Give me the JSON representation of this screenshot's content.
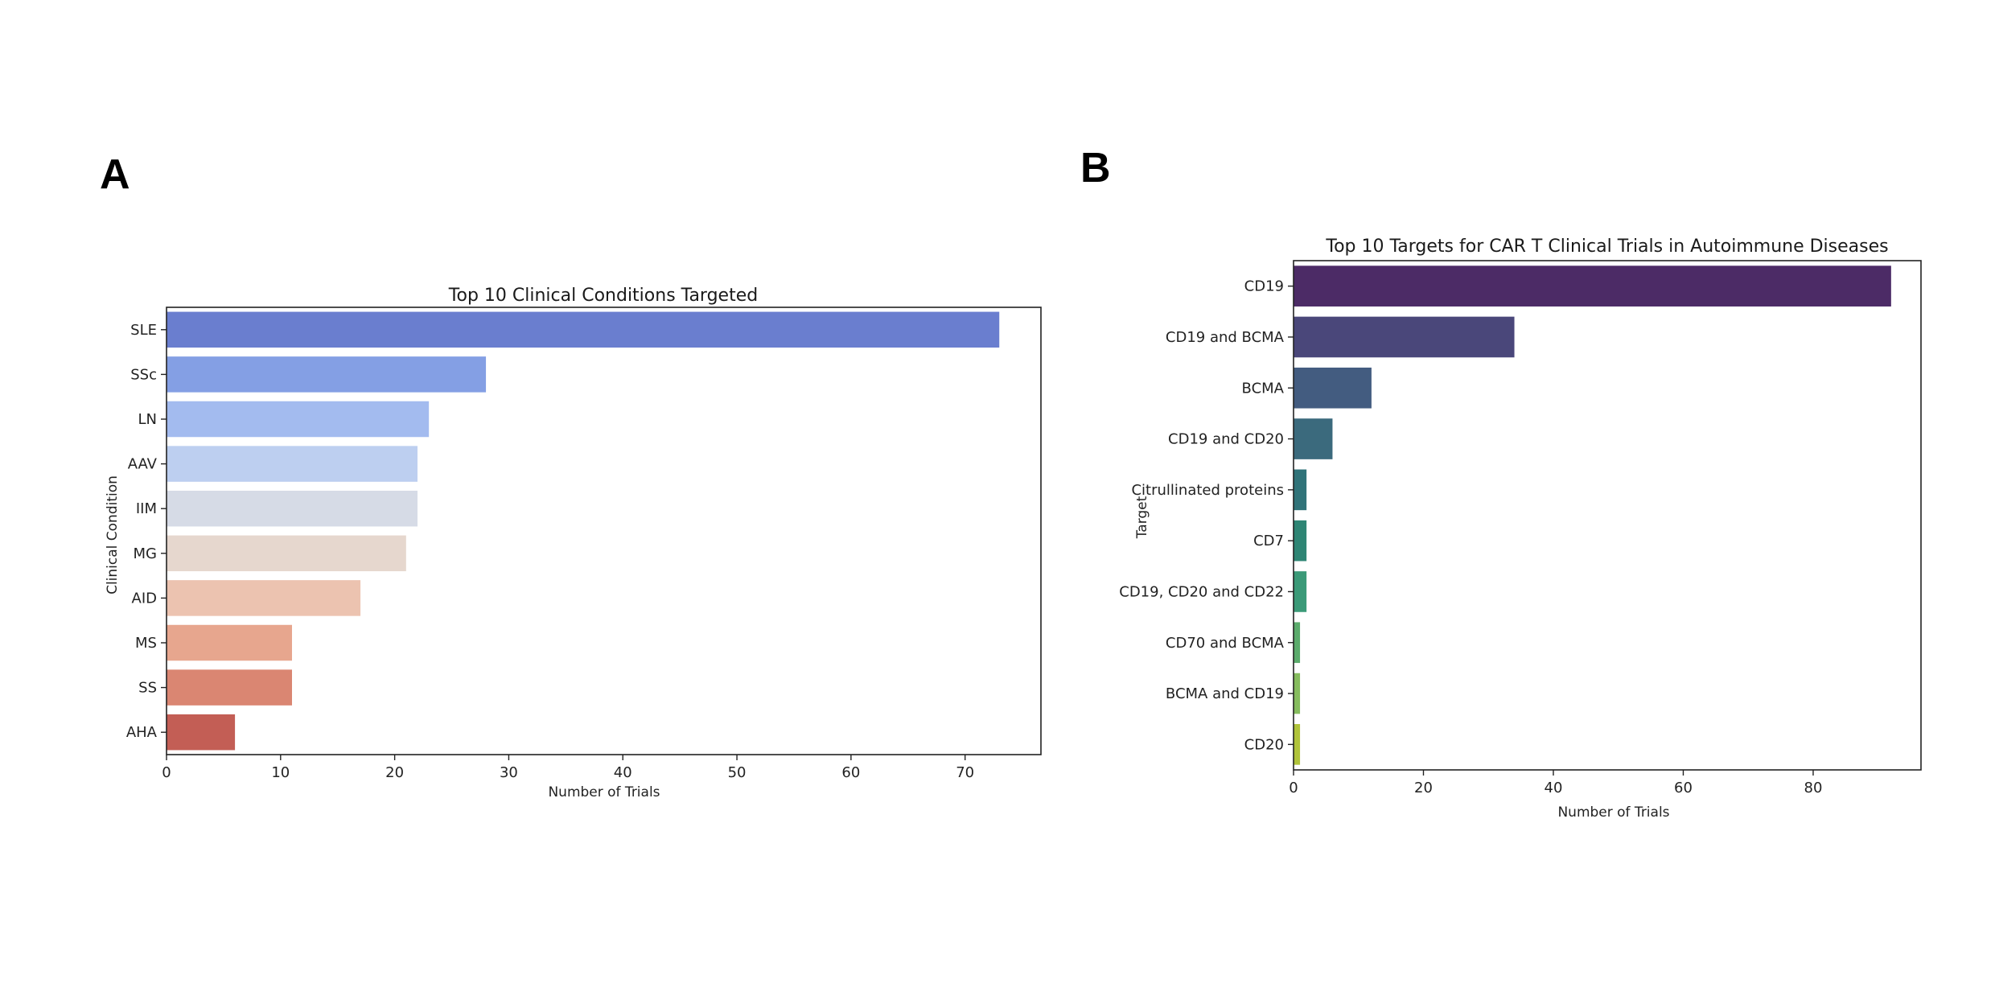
{
  "figure": {
    "panels": [
      {
        "letter": "A"
      },
      {
        "letter": "B"
      }
    ]
  },
  "chart_data": [
    {
      "type": "bar",
      "orientation": "horizontal",
      "title": "Top 10 Clinical Conditions Targeted",
      "xlabel": "Number of Trials",
      "ylabel": "Clinical Condition",
      "categories": [
        "SLE",
        "SSc",
        "LN",
        "AAV",
        "IIM",
        "MG",
        "AID",
        "MS",
        "SS",
        "AHA"
      ],
      "values": [
        73,
        28,
        23,
        22,
        22,
        21,
        17,
        11,
        11,
        6
      ],
      "colors": [
        "#6a7ecf",
        "#849fe4",
        "#a3bbef",
        "#bdcff0",
        "#d6dbe6",
        "#e6d7ce",
        "#ecc3b0",
        "#e7a68e",
        "#da8672",
        "#c35e55"
      ],
      "palette": "coolwarm",
      "xlim": [
        0,
        76.65
      ],
      "xticks": [
        0,
        10,
        20,
        30,
        40,
        50,
        60,
        70
      ],
      "grid": false,
      "legend": "none"
    },
    {
      "type": "bar",
      "orientation": "horizontal",
      "title": "Top 10 Targets for CAR T Clinical Trials in Autoimmune Diseases",
      "xlabel": "Number of Trials",
      "ylabel": "Target",
      "categories": [
        "CD19",
        "CD19 and BCMA",
        "BCMA",
        "CD19 and CD20",
        "Citrullinated proteins",
        "CD7",
        "CD19, CD20 and CD22",
        "CD70 and BCMA",
        "BCMA and CD19",
        "CD20"
      ],
      "values": [
        92,
        34,
        12,
        6,
        2,
        2,
        2,
        1,
        1,
        1
      ],
      "colors": [
        "#4c2b66",
        "#4a477a",
        "#435c80",
        "#3b6a7d",
        "#307379",
        "#2e8574",
        "#3b9a78",
        "#5bab6c",
        "#86bc5e",
        "#b0c33a"
      ],
      "palette": "viridis",
      "xlim": [
        0,
        96.6
      ],
      "xticks": [
        0,
        20,
        40,
        60,
        80
      ],
      "grid": false,
      "legend": "none"
    }
  ]
}
